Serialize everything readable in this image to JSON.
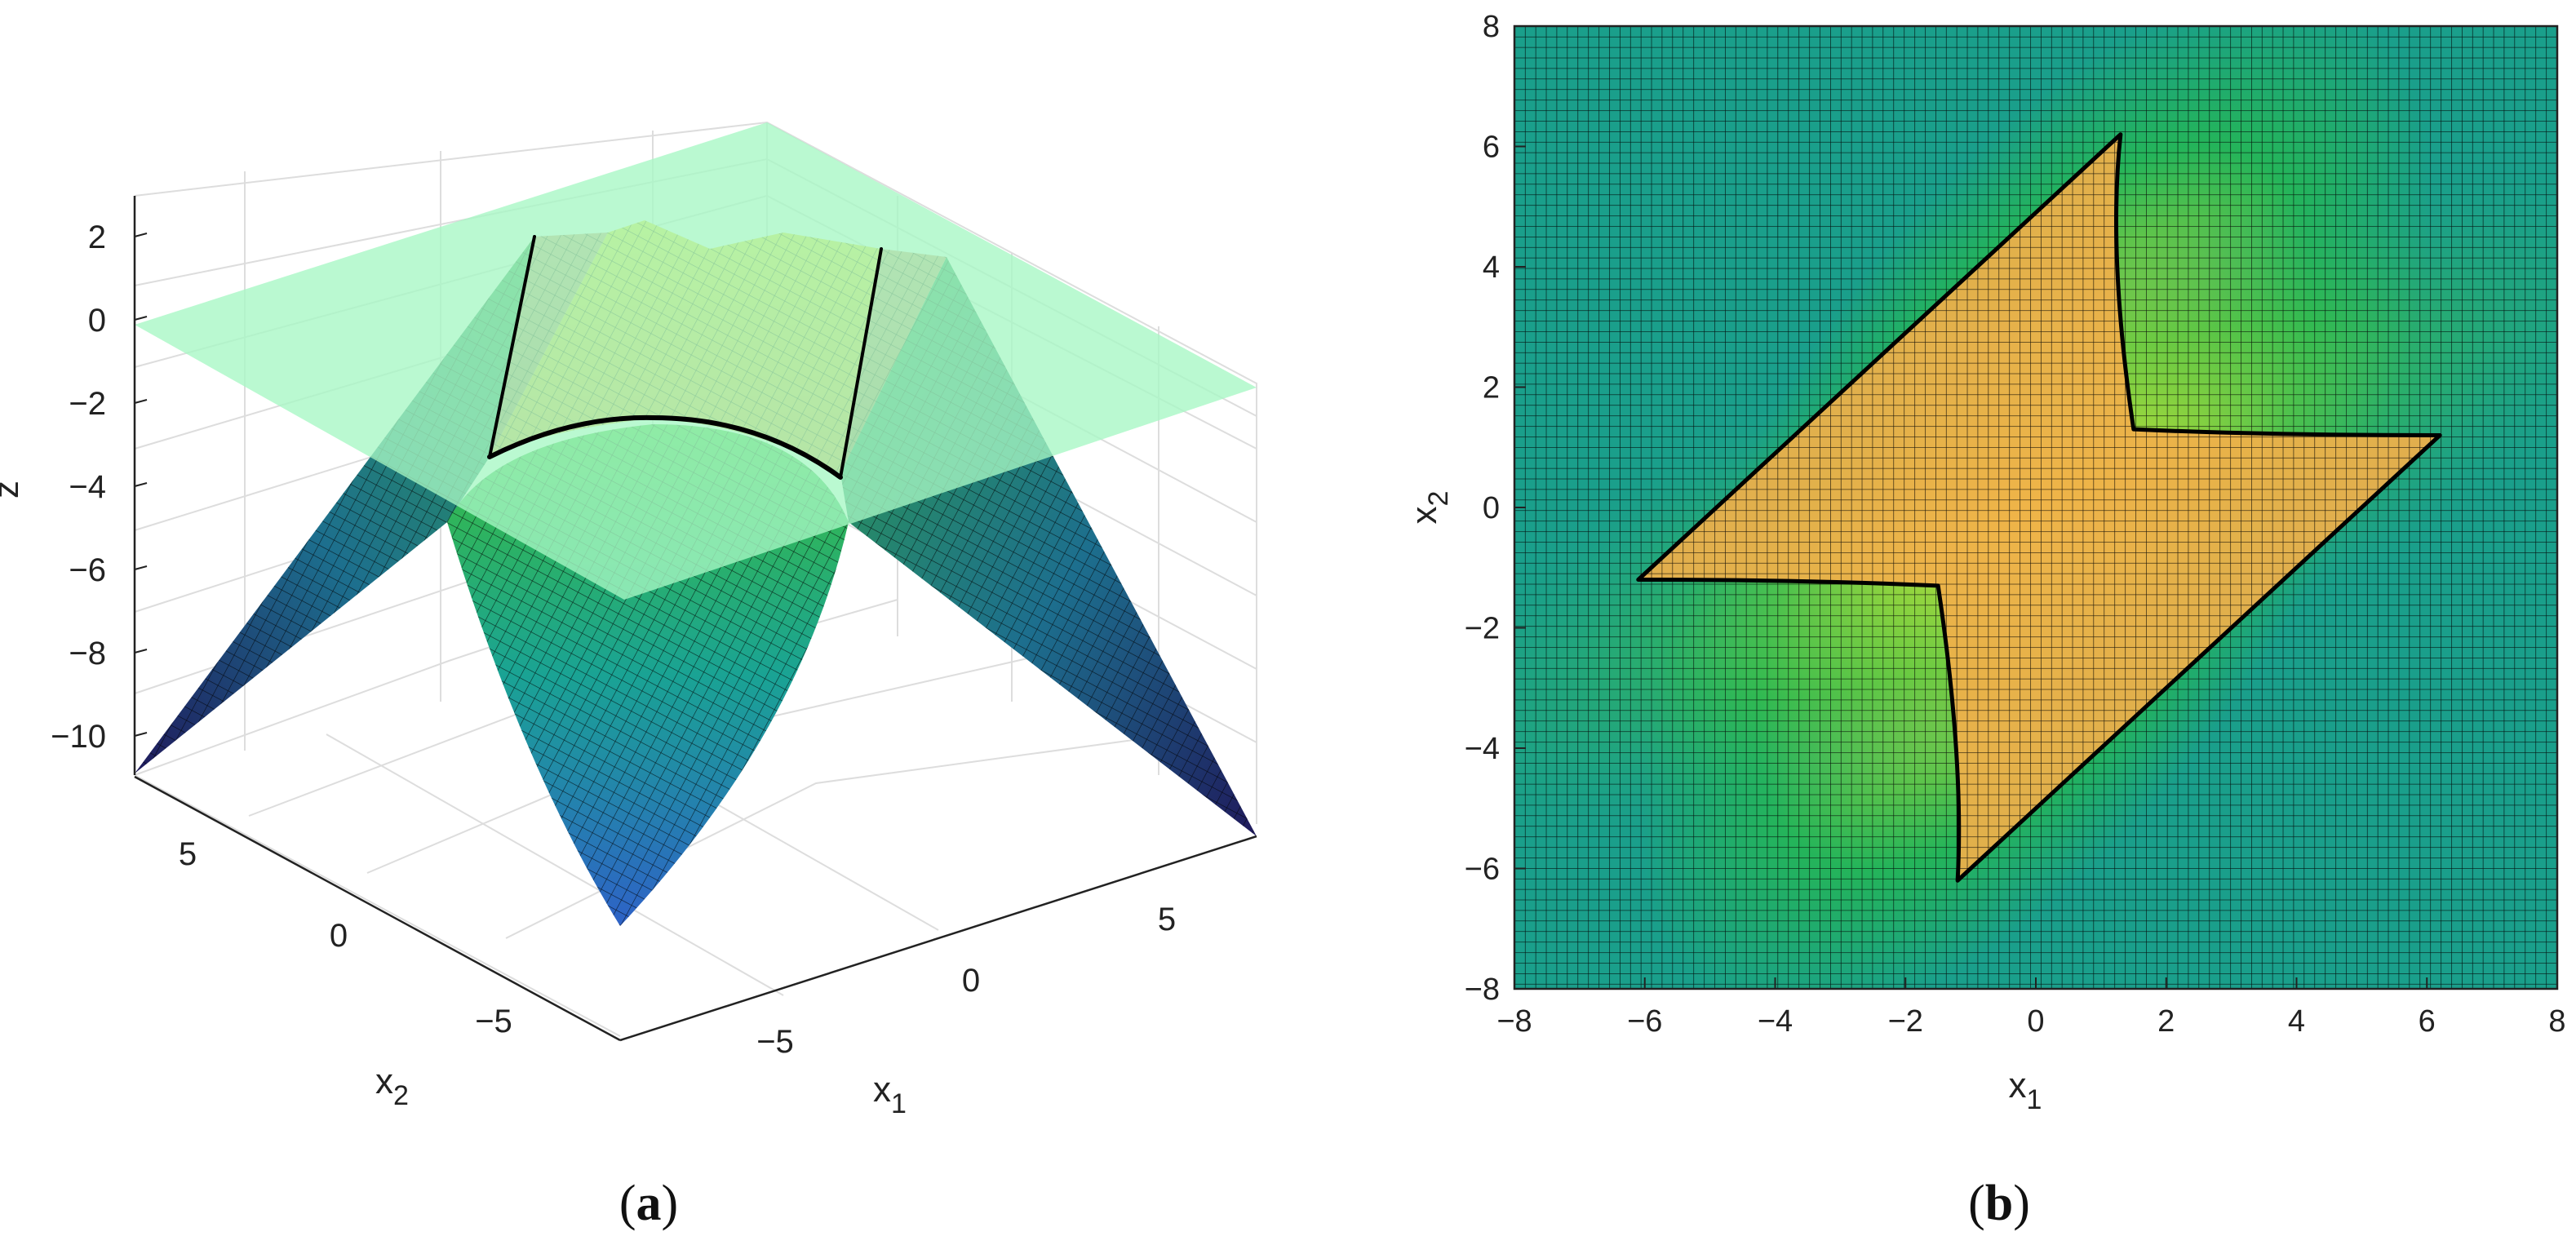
{
  "panel_labels": {
    "a": "a",
    "b": "b"
  },
  "chart_data": [
    {
      "type": "surface3d",
      "panel": "a",
      "zlabel": "z",
      "xlabel": "x",
      "xlabel_sub": "1",
      "ylabel": "x",
      "ylabel_sub": "2",
      "z_ticks": [
        "2",
        "0",
        "−2",
        "−4",
        "−6",
        "−8",
        "−10"
      ],
      "x1_ticks": [
        "−5",
        "0",
        "5"
      ],
      "x2_ticks": [
        "5",
        "0",
        "−5"
      ],
      "xlim": [
        -7,
        7
      ],
      "ylim": [
        -7,
        7
      ],
      "zlim": [
        -11,
        3
      ],
      "plane_z": 0,
      "colors": {
        "plane": "#a7f7c4",
        "contour": "#000000",
        "region": "#e8a24a"
      }
    },
    {
      "type": "heatmap",
      "panel": "b",
      "xlabel": "x",
      "xlabel_sub": "1",
      "ylabel": "x",
      "ylabel_sub": "2",
      "xlim": [
        -8,
        8
      ],
      "ylim": [
        -8,
        8
      ],
      "x_ticks": [
        "−8",
        "−6",
        "−4",
        "−2",
        "0",
        "2",
        "4",
        "6",
        "8"
      ],
      "y_ticks": [
        "8",
        "6",
        "4",
        "2",
        "0",
        "−2",
        "−4",
        "−6",
        "−8"
      ],
      "region_outline": [
        [
          1.3,
          6.2
        ],
        [
          6.2,
          1.2
        ],
        [
          -1.2,
          -6.2
        ],
        [
          -6.1,
          -1.2
        ]
      ],
      "colors": {
        "region": "#f2b04a",
        "outline": "#000000"
      }
    }
  ]
}
